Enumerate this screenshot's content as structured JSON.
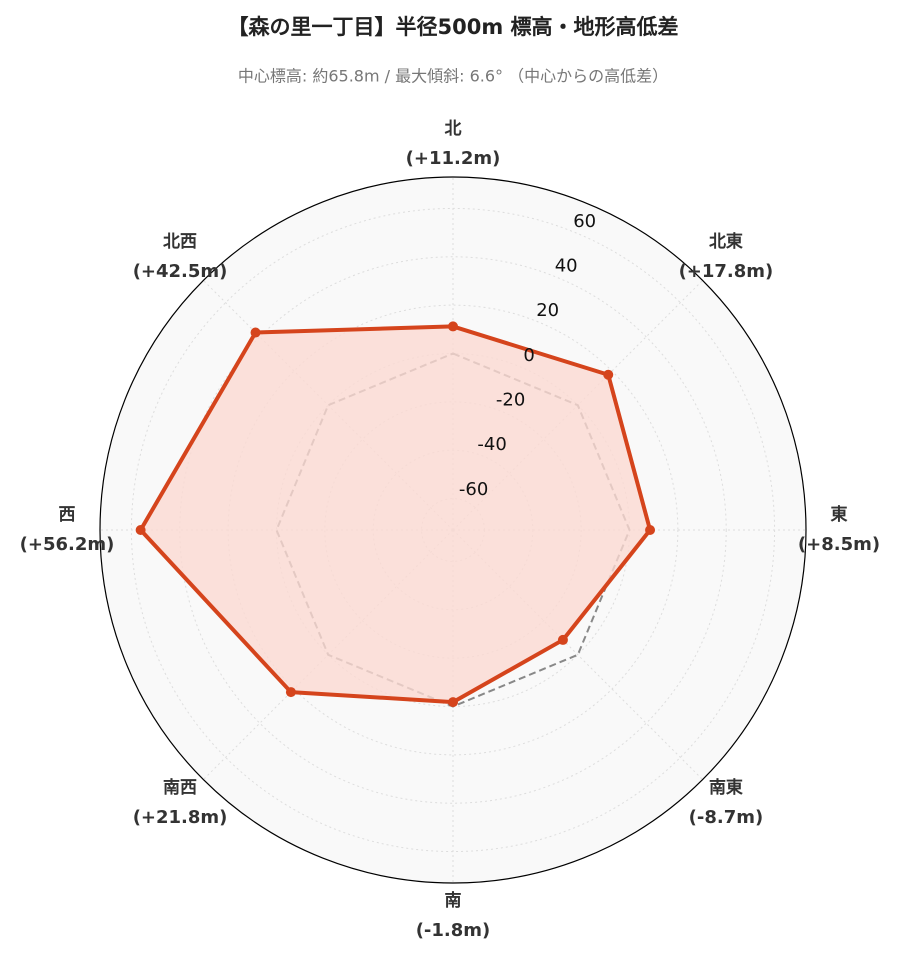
{
  "chart_data": {
    "type": "radar",
    "title": "【森の里一丁目】半径500m 標高・地形高低差",
    "subtitle": "中心標高: 約65.8m / 最大傾斜: 6.6° （中心からの高低差）",
    "categories": [
      "北",
      "北東",
      "東",
      "南東",
      "南",
      "南西",
      "西",
      "北西"
    ],
    "values": [
      11.2,
      17.8,
      8.5,
      -8.7,
      -1.8,
      21.8,
      56.2,
      42.5
    ],
    "value_labels": [
      "(+11.2m)",
      "(+17.8m)",
      "(+8.5m)",
      "(-8.7m)",
      "(-1.8m)",
      "(+21.8m)",
      "(+56.2m)",
      "(+42.5m)"
    ],
    "color": "#d5441c",
    "fill_color": "#fbdad2",
    "reference_value": 0,
    "reference_color": "#888888",
    "ylim": [
      -73,
      73
    ],
    "yticks": [
      -60,
      -40,
      -20,
      0,
      20,
      40,
      60
    ],
    "grid": true
  }
}
